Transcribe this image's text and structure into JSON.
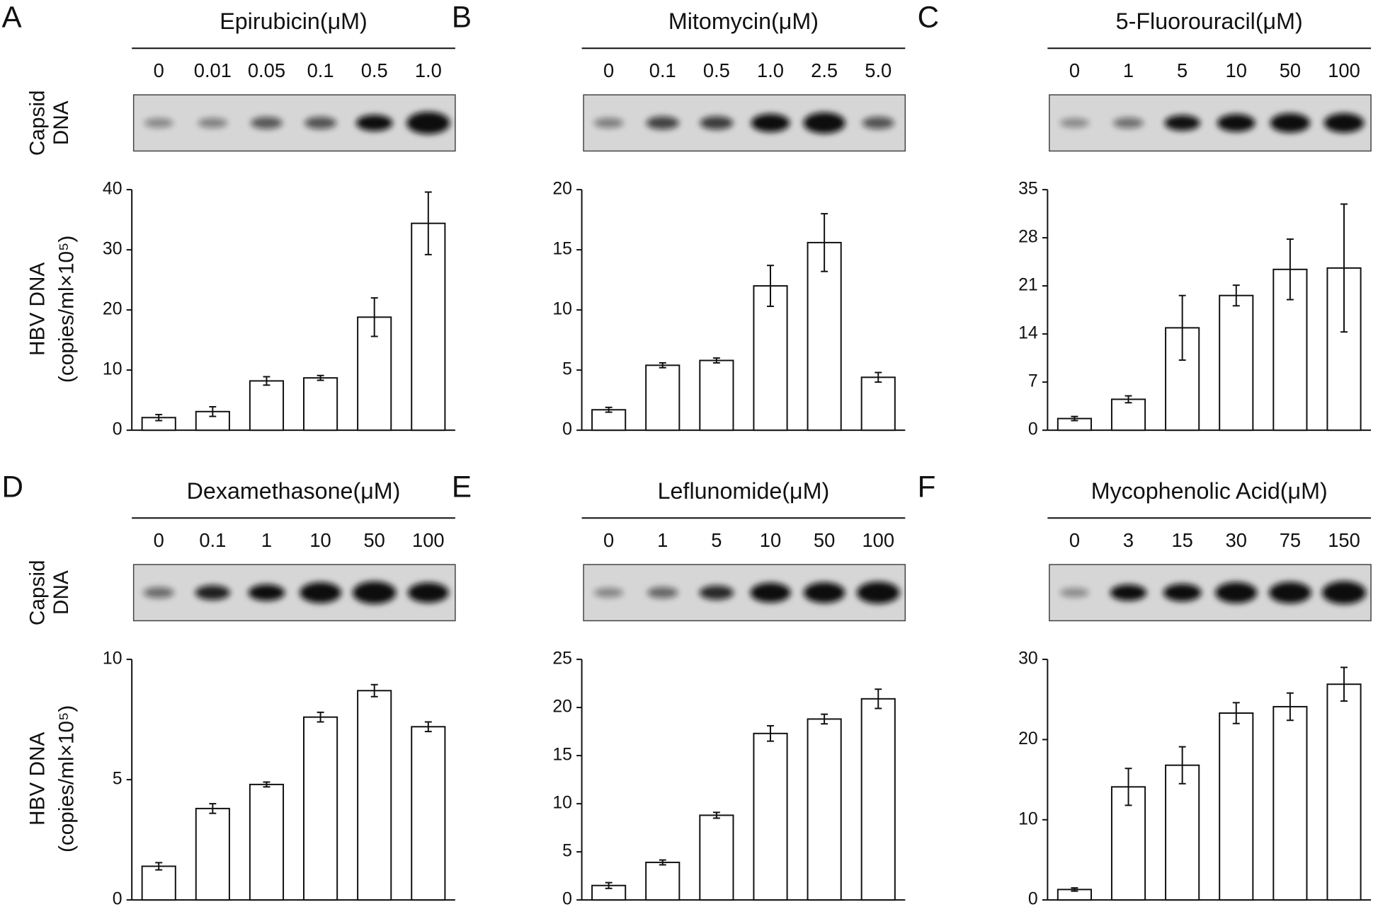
{
  "chart_data": [
    {
      "type": "bar",
      "panel": "A",
      "title": "Epirubicin(μM)",
      "categories": [
        "0",
        "0.01",
        "0.05",
        "0.1",
        "0.5",
        "1.0"
      ],
      "values": [
        2.1,
        3.1,
        8.2,
        8.7,
        18.8,
        34.4
      ],
      "errors": [
        0.5,
        0.8,
        0.7,
        0.4,
        3.2,
        5.2
      ],
      "ylim": [
        0,
        40
      ],
      "yticks": [
        0,
        10,
        20,
        30,
        40
      ],
      "gel_label": [
        "Capsid",
        "DNA"
      ],
      "y_label": [
        "HBV DNA",
        "(copies/ml×10⁵)"
      ]
    },
    {
      "type": "bar",
      "panel": "B",
      "title": "Mitomycin(μM)",
      "categories": [
        "0",
        "0.1",
        "0.5",
        "1.0",
        "2.5",
        "5.0"
      ],
      "values": [
        1.7,
        5.4,
        5.8,
        12.0,
        15.6,
        4.4
      ],
      "errors": [
        0.2,
        0.2,
        0.2,
        1.7,
        2.4,
        0.4
      ],
      "ylim": [
        0,
        20
      ],
      "yticks": [
        0,
        5,
        10,
        15,
        20
      ]
    },
    {
      "type": "bar",
      "panel": "C",
      "title": "5-Fluorouracil(μM)",
      "categories": [
        "0",
        "1",
        "5",
        "10",
        "50",
        "100"
      ],
      "values": [
        1.7,
        4.5,
        14.9,
        19.6,
        23.4,
        23.6
      ],
      "errors": [
        0.3,
        0.5,
        4.7,
        1.5,
        4.4,
        9.3
      ],
      "ylim": [
        0,
        35
      ],
      "yticks": [
        0,
        7,
        14,
        21,
        28,
        35
      ]
    },
    {
      "type": "bar",
      "panel": "D",
      "title": "Dexamethasone(μM)",
      "categories": [
        "0",
        "0.1",
        "1",
        "10",
        "50",
        "100"
      ],
      "values": [
        1.4,
        3.8,
        4.8,
        7.6,
        8.7,
        7.2
      ],
      "errors": [
        0.15,
        0.2,
        0.1,
        0.2,
        0.25,
        0.2
      ],
      "ylim": [
        0,
        10
      ],
      "yticks": [
        0,
        5,
        10
      ],
      "gel_label": [
        "Capsid",
        "DNA"
      ],
      "y_label": [
        "HBV DNA",
        "(copies/ml×10⁵)"
      ]
    },
    {
      "type": "bar",
      "panel": "E",
      "title": "Leflunomide(μM)",
      "categories": [
        "0",
        "1",
        "5",
        "10",
        "50",
        "100"
      ],
      "values": [
        1.5,
        3.9,
        8.8,
        17.3,
        18.8,
        20.9
      ],
      "errors": [
        0.3,
        0.25,
        0.3,
        0.8,
        0.5,
        1.0
      ],
      "ylim": [
        0,
        25
      ],
      "yticks": [
        0,
        5,
        10,
        15,
        20,
        25
      ]
    },
    {
      "type": "bar",
      "panel": "F",
      "title": "Mycophenolic Acid(μM)",
      "categories": [
        "0",
        "3",
        "15",
        "30",
        "75",
        "150"
      ],
      "values": [
        1.3,
        14.1,
        16.8,
        23.3,
        24.1,
        26.9
      ],
      "errors": [
        0.2,
        2.3,
        2.3,
        1.3,
        1.7,
        2.1
      ],
      "ylim": [
        0,
        30
      ],
      "yticks": [
        0,
        10,
        20,
        30
      ]
    }
  ]
}
